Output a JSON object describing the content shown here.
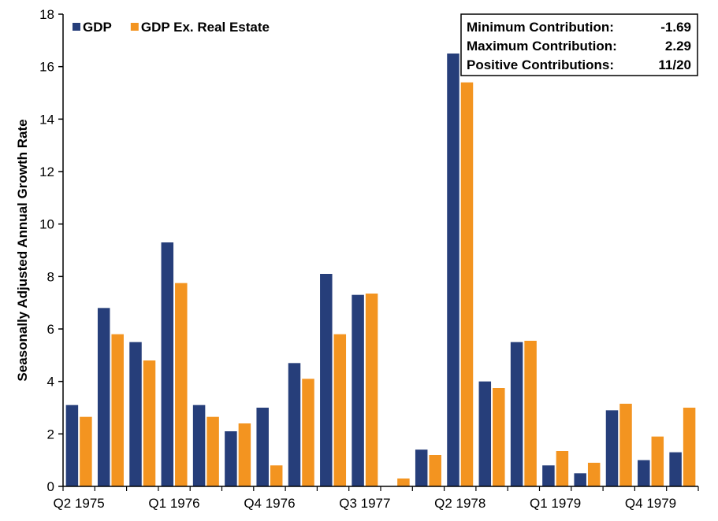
{
  "chart_data": {
    "type": "bar",
    "title": "",
    "xlabel": "",
    "ylabel": "Seasonally Adjusted Annual Growth Rate",
    "ylim": [
      0,
      18
    ],
    "yticks": [
      0,
      2,
      4,
      6,
      8,
      10,
      12,
      14,
      16,
      18
    ],
    "grid": false,
    "legend_position": "top-left",
    "categories": [
      "Q2 1975",
      "Q3 1975",
      "Q4 1975",
      "Q1 1976",
      "Q2 1976",
      "Q3 1976",
      "Q4 1976",
      "Q1 1977",
      "Q2 1977",
      "Q3 1977",
      "Q4 1977",
      "Q1 1978",
      "Q2 1978",
      "Q3 1978",
      "Q4 1978",
      "Q1 1979",
      "Q2 1979",
      "Q3 1979",
      "Q4 1979",
      "Q1 1980"
    ],
    "shown_category_labels": [
      "Q2 1975",
      "Q1 1976",
      "Q4 1976",
      "Q3 1977",
      "Q2 1978",
      "Q1 1979",
      "Q4 1979"
    ],
    "series": [
      {
        "name": "GDP",
        "color": "#263e7a",
        "values": [
          3.1,
          6.8,
          5.5,
          9.3,
          3.1,
          2.1,
          3.0,
          4.7,
          8.1,
          7.3,
          0,
          1.4,
          16.5,
          4.0,
          5.5,
          0.8,
          0.5,
          2.9,
          1.0,
          1.3
        ]
      },
      {
        "name": "GDP Ex. Real Estate",
        "color": "#f39420",
        "values": [
          2.65,
          5.8,
          4.8,
          7.75,
          2.65,
          2.4,
          0.8,
          4.1,
          5.8,
          7.35,
          0.3,
          1.2,
          15.4,
          3.75,
          5.55,
          1.35,
          0.9,
          3.15,
          1.9,
          3.0
        ]
      }
    ],
    "stats_box": {
      "position": "top-right",
      "rows": [
        {
          "label": "Minimum Contribution:",
          "value": "-1.69"
        },
        {
          "label": "Maximum Contribution:",
          "value": "2.29"
        },
        {
          "label": "Positive Contributions:",
          "value": "11/20"
        }
      ]
    }
  }
}
